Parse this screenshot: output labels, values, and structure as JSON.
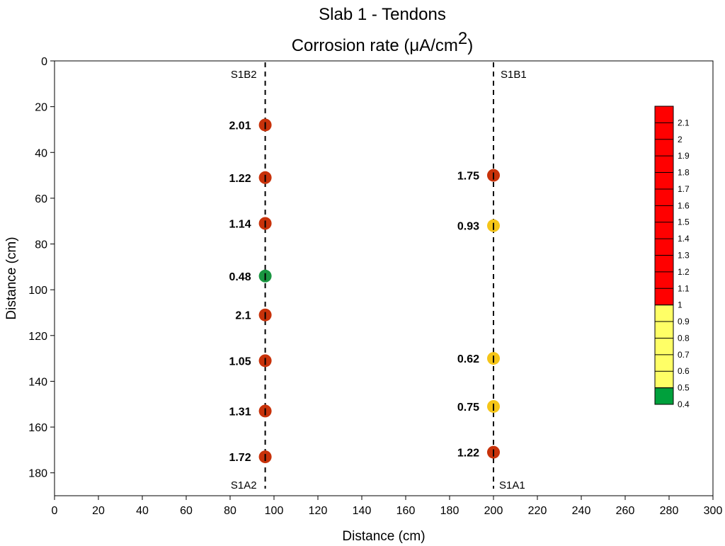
{
  "chart_data": {
    "type": "scatter",
    "title": "Slab 1 - Tendons",
    "subtitle_text": "Corrosion rate (μA/cm",
    "subtitle_sup": "2",
    "subtitle_close": ")",
    "xlabel": "Distance (cm)",
    "ylabel": "Distance (cm)",
    "xlim": [
      0,
      300
    ],
    "ylim": [
      0,
      190
    ],
    "y_inverted": true,
    "x_ticks": [
      0,
      20,
      40,
      60,
      80,
      100,
      120,
      140,
      160,
      180,
      200,
      220,
      240,
      260,
      280,
      300
    ],
    "y_ticks": [
      0,
      20,
      40,
      60,
      80,
      100,
      120,
      140,
      160,
      180
    ],
    "tendon_lines": [
      {
        "x": 96,
        "label_top": "S1B2",
        "label_bottom": "S1A2"
      },
      {
        "x": 200,
        "label_top": "S1B1",
        "label_bottom": "S1A1"
      }
    ],
    "series": [
      {
        "x": 96,
        "points": [
          {
            "y": 28,
            "value": "2.01"
          },
          {
            "y": 51,
            "value": "1.22"
          },
          {
            "y": 71,
            "value": "1.14"
          },
          {
            "y": 94,
            "value": "0.48"
          },
          {
            "y": 111,
            "value": "2.1"
          },
          {
            "y": 131,
            "value": "1.05"
          },
          {
            "y": 153,
            "value": "1.31"
          },
          {
            "y": 173,
            "value": "1.72"
          }
        ]
      },
      {
        "x": 200,
        "points": [
          {
            "y": 50,
            "value": "1.75"
          },
          {
            "y": 72,
            "value": "0.93"
          },
          {
            "y": 130,
            "value": "0.62"
          },
          {
            "y": 151,
            "value": "0.75"
          },
          {
            "y": 171,
            "value": "1.22"
          }
        ]
      }
    ],
    "marker_colors": {
      "high": "#c8320a",
      "mid": "#f5c518",
      "low": "#1a9641"
    },
    "legend": {
      "placement": "right",
      "levels": [
        "2.1",
        "2",
        "1.9",
        "1.8",
        "1.7",
        "1.6",
        "1.5",
        "1.4",
        "1.3",
        "1.2",
        "1.1",
        "1",
        "0.9",
        "0.8",
        "0.7",
        "0.6",
        "0.5",
        "0.4"
      ],
      "bands": [
        {
          "from": 1.0,
          "to": 2.2,
          "color": "#ff0000"
        },
        {
          "from": 0.5,
          "to": 1.0,
          "color": "#ffff66"
        },
        {
          "from": 0.4,
          "to": 0.5,
          "color": "#00a03c"
        }
      ]
    },
    "grid": false
  }
}
